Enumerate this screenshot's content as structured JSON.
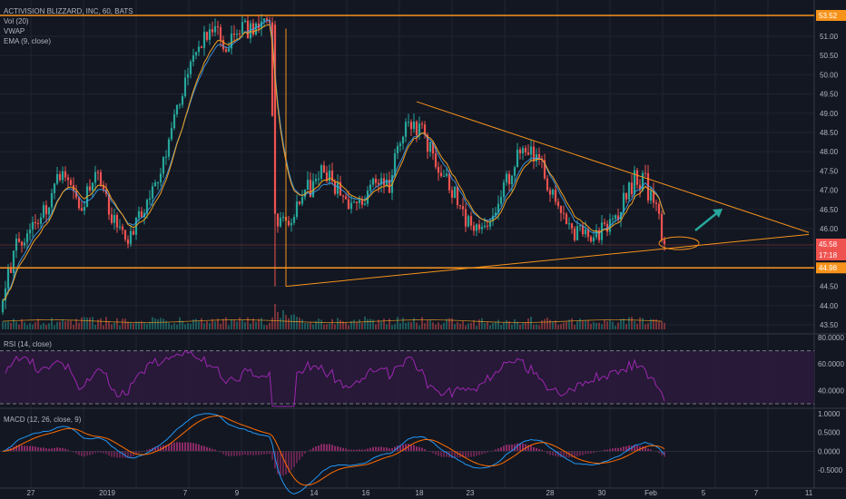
{
  "legend": {
    "title": "ACTIVISION BLIZZARD, INC, 60, BATS",
    "volume": "Vol (20)",
    "vwap": "VWAP",
    "ema": "EMA (9, close)"
  },
  "rsi_label": "RSI (14, close)",
  "macd_label": "MACD (12, 26, close, 9)",
  "price_badges": {
    "top": "53.52",
    "last": "45.58",
    "countdown": "17:18",
    "bottom": "44.98"
  },
  "colors": {
    "up": "#26a69a",
    "down": "#ef5350",
    "ema": "#f0a020",
    "vwap": "#42a5f5",
    "level": "#f7931a",
    "rsi": "#9c27b0",
    "macd": "#2196f3",
    "signal": "#ff6d00",
    "arrow": "#26a69a",
    "background": "#131722"
  },
  "chart_data": [
    {
      "type": "candlestick",
      "title": "ACTIVISION BLIZZARD, INC, 60, BATS",
      "x_ticks": [
        "27",
        "2019",
        "7",
        "9",
        "14",
        "16",
        "18",
        "23",
        "28",
        "30",
        "Feb",
        "5",
        "7",
        "11"
      ],
      "y_ticks": [
        "51.00",
        "50.50",
        "50.00",
        "49.50",
        "49.00",
        "48.50",
        "48.00",
        "47.50",
        "47.00",
        "46.50",
        "46.00",
        "45.50",
        "45.00",
        "44.50",
        "44.00",
        "43.50"
      ],
      "ylim": [
        43.4,
        52.0
      ],
      "horizontal_levels": [
        53.52,
        44.98
      ],
      "path_anchors": [
        {
          "i": 0,
          "p": 44.4
        },
        {
          "i": 6,
          "p": 45.7
        },
        {
          "i": 14,
          "p": 46.3
        },
        {
          "i": 22,
          "p": 47.6
        },
        {
          "i": 28,
          "p": 46.4
        },
        {
          "i": 34,
          "p": 47.4
        },
        {
          "i": 40,
          "p": 46.3
        },
        {
          "i": 46,
          "p": 45.5
        },
        {
          "i": 52,
          "p": 46.6
        },
        {
          "i": 58,
          "p": 47.6
        },
        {
          "i": 64,
          "p": 49.0
        },
        {
          "i": 70,
          "p": 50.5
        },
        {
          "i": 76,
          "p": 51.2
        },
        {
          "i": 82,
          "p": 50.8
        },
        {
          "i": 88,
          "p": 51.1
        },
        {
          "i": 94,
          "p": 51.3
        },
        {
          "i": 98,
          "p": 51.4
        },
        {
          "i": 100,
          "p": 46.2
        },
        {
          "i": 106,
          "p": 46.3
        },
        {
          "i": 112,
          "p": 47.0
        },
        {
          "i": 118,
          "p": 47.5
        },
        {
          "i": 124,
          "p": 47.0
        },
        {
          "i": 130,
          "p": 46.4
        },
        {
          "i": 136,
          "p": 47.3
        },
        {
          "i": 142,
          "p": 47.2
        },
        {
          "i": 148,
          "p": 48.9
        },
        {
          "i": 154,
          "p": 48.5
        },
        {
          "i": 160,
          "p": 47.6
        },
        {
          "i": 166,
          "p": 46.9
        },
        {
          "i": 172,
          "p": 45.9
        },
        {
          "i": 178,
          "p": 46.3
        },
        {
          "i": 184,
          "p": 47.0
        },
        {
          "i": 190,
          "p": 48.1
        },
        {
          "i": 196,
          "p": 47.9
        },
        {
          "i": 202,
          "p": 46.8
        },
        {
          "i": 208,
          "p": 45.9
        },
        {
          "i": 214,
          "p": 45.8
        },
        {
          "i": 220,
          "p": 45.9
        },
        {
          "i": 226,
          "p": 46.5
        },
        {
          "i": 232,
          "p": 47.3
        },
        {
          "i": 236,
          "p": 47.2
        },
        {
          "i": 240,
          "p": 46.4
        },
        {
          "i": 243,
          "p": 45.6
        }
      ],
      "candle_count": 244,
      "triangle": {
        "upper": {
          "from": {
            "i": 152,
            "p": 49.3
          },
          "to": {
            "i": 296,
            "p": 45.9
          }
        },
        "lower": {
          "from": {
            "i": 104,
            "p": 44.5
          },
          "to": {
            "i": 296,
            "p": 45.85
          }
        }
      }
    },
    {
      "type": "line",
      "title": "RSI (14, close)",
      "y_ticks": [
        "80.0000",
        "60.0000",
        "40.0000"
      ],
      "ylim": [
        25,
        83
      ],
      "bands": [
        70,
        30
      ]
    },
    {
      "type": "line",
      "title": "MACD (12, 26, close, 9)",
      "y_ticks": [
        "1.0000",
        "0.5000",
        "0.0000",
        "-0.5000"
      ],
      "ylim": [
        -0.62,
        1.05
      ],
      "series": [
        {
          "name": "MACD"
        },
        {
          "name": "Signal"
        },
        {
          "name": "Histogram"
        }
      ]
    }
  ]
}
